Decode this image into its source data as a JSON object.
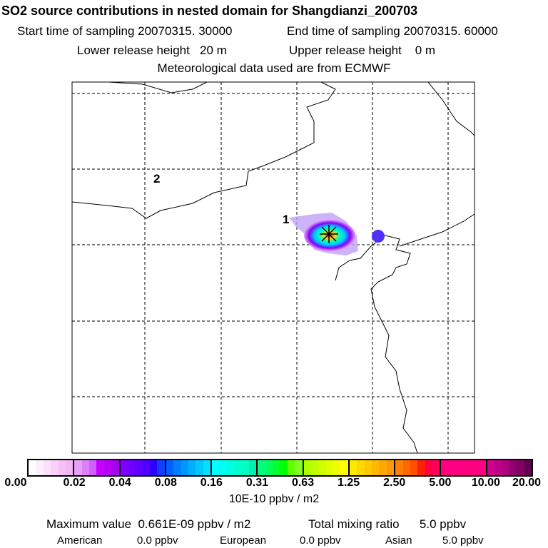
{
  "title": "SO2 source contributions in nested domain for Shangdianzi_200703",
  "start_time": "Start time of sampling 20070315. 30000",
  "end_time": "End time of sampling 20070315. 60000",
  "lower_height": "Lower release height   20 m",
  "upper_height": "Upper release height    0 m",
  "met": "Meteorological data used are from ECMWF",
  "map": {
    "markers": [
      "1",
      "2"
    ]
  },
  "colorbar": {
    "labels": [
      "0.00",
      "0.02",
      "0.04",
      "0.08",
      "0.16",
      "0.31",
      "0.63",
      "1.25",
      "2.50",
      "5.00",
      "10.00",
      "20.00"
    ],
    "unit": "10E-10 ppbv / m2",
    "colors": [
      [
        "#ffffff",
        "#fdf0fd",
        "#fbe0fb",
        "#f8d0f8",
        "#f5c0f5",
        "#f3b5f3"
      ],
      [
        "#e6a0f5",
        "#dd80fa",
        "#d060f8",
        "#c800ff",
        "#b800f8",
        "#a800f0"
      ],
      [
        "#8000ff",
        "#7000ff",
        "#6000ff",
        "#5000ff",
        "#3000ff",
        "#1040ff"
      ],
      [
        "#0060ff",
        "#0080ff",
        "#0098ff",
        "#00b0ff",
        "#00c8ff",
        "#00e0ff"
      ],
      [
        "#00ffff",
        "#00fff0",
        "#00ffe0",
        "#00ffd0",
        "#00ffc0",
        "#00f0b0"
      ],
      [
        "#00ff80",
        "#00ff60",
        "#00ff30",
        "#00ff00",
        "#60ff00",
        "#80ff20"
      ],
      [
        "#b0ff00",
        "#c0ff00",
        "#d0ff00",
        "#e0ff00",
        "#f0ff00",
        "#ffff00"
      ],
      [
        "#ffe800",
        "#ffd800",
        "#ffc800",
        "#ffb800",
        "#ffa800",
        "#ff9800"
      ],
      [
        "#ff8000",
        "#ff6800",
        "#ff5000",
        "#ff2000",
        "#ff0040",
        "#ff0060"
      ],
      [
        "#ff0080",
        "#ff0080",
        "#ff0080",
        "#ff0080",
        "#ff0080",
        "#ff0080"
      ],
      [
        "#d00090",
        "#c00088",
        "#b00080",
        "#900070",
        "#800060",
        "#600050"
      ]
    ]
  },
  "max_value": "Maximum value  0.661E-09 ppbv / m2",
  "total": "Total mixing ratio      5.0 ppbv",
  "american_label": "American",
  "american_value": "0.0 ppbv",
  "european_label": "European",
  "european_value": "0.0 ppbv",
  "asian_label": "Asian",
  "asian_value": "5.0 ppbv"
}
